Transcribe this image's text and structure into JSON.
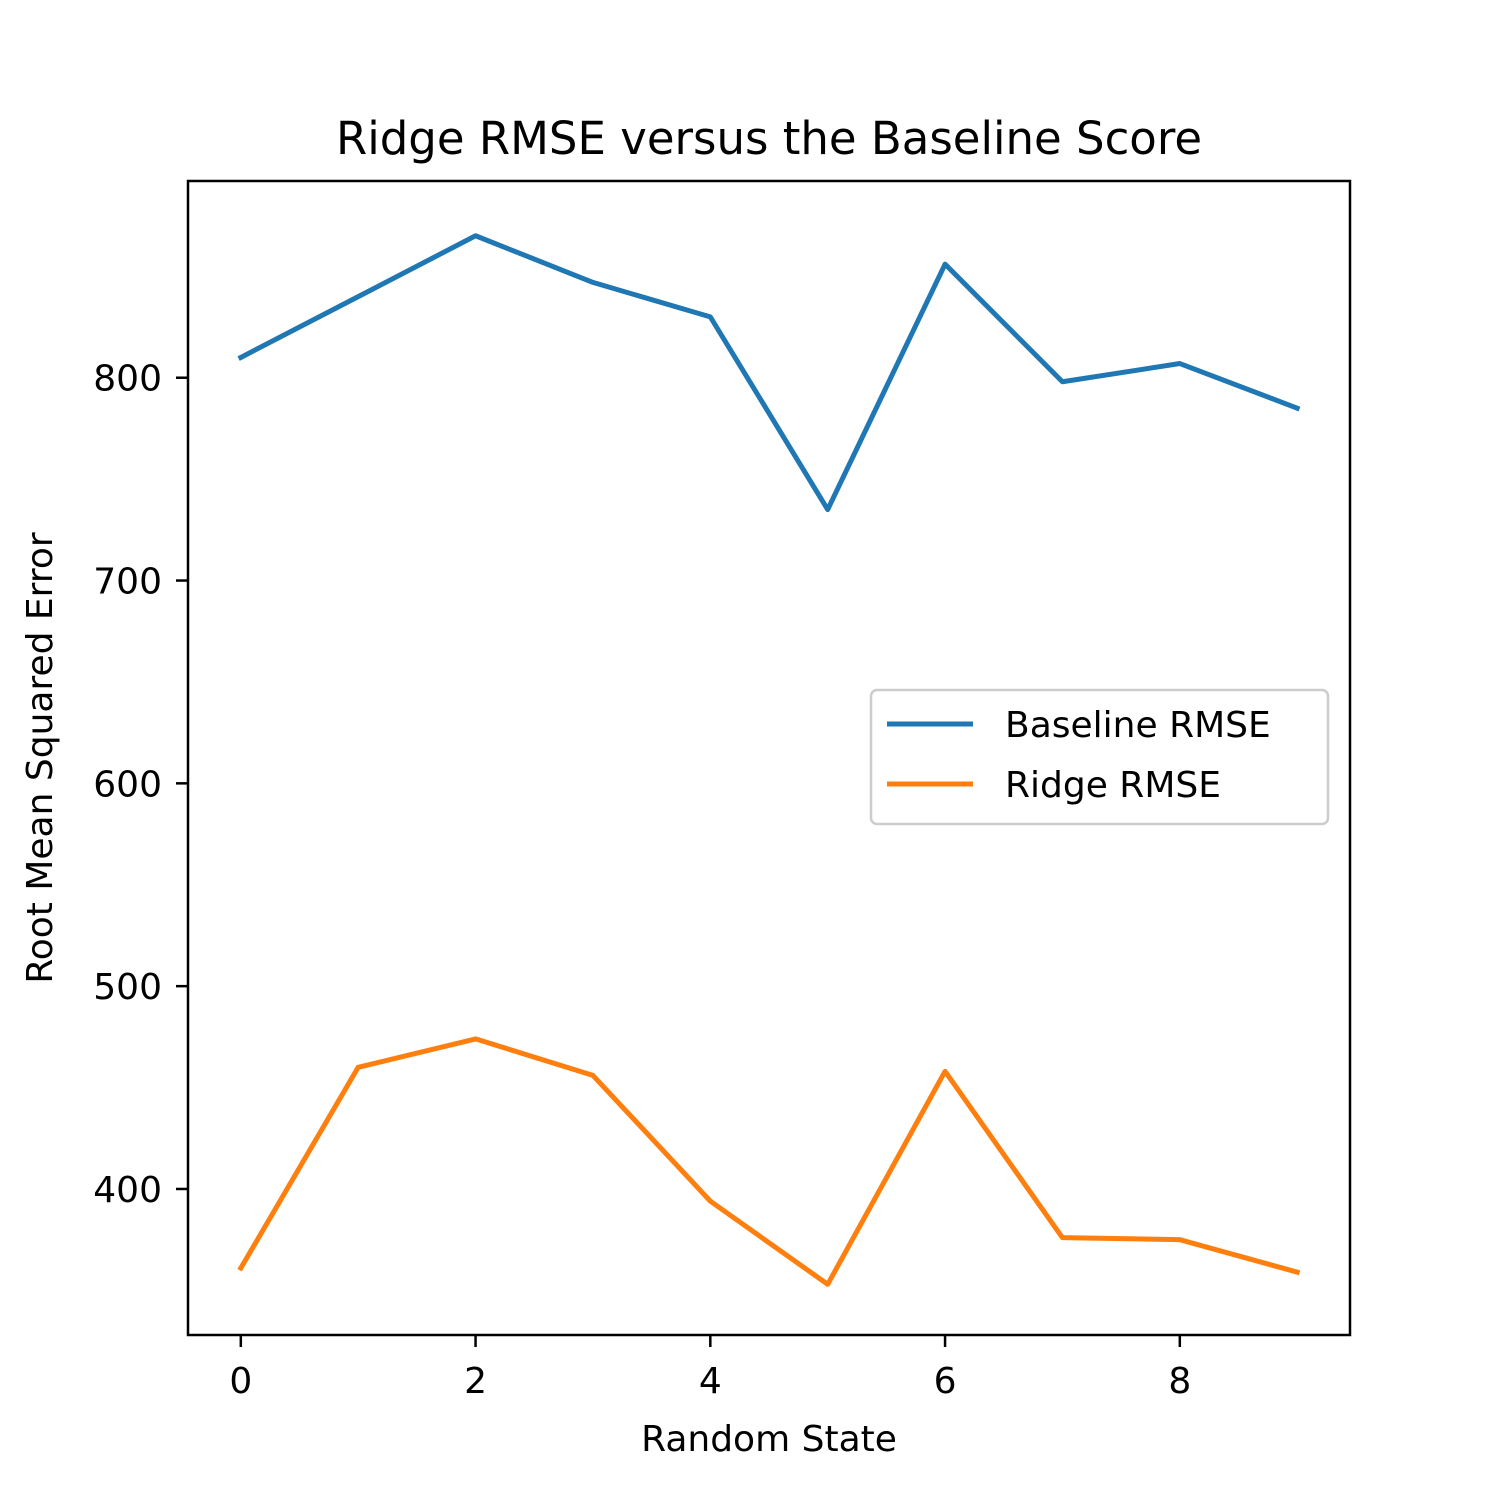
{
  "chart_data": {
    "type": "line",
    "title": "Ridge RMSE versus the Baseline Score",
    "xlabel": "Random State",
    "ylabel": "Root Mean Squared Error",
    "x": [
      0,
      1,
      2,
      3,
      4,
      5,
      6,
      7,
      8,
      9
    ],
    "xlim": [
      -0.45,
      9.45
    ],
    "ylim": [
      328,
      897
    ],
    "xticks": [
      0,
      2,
      4,
      6,
      8
    ],
    "yticks": [
      400,
      500,
      600,
      700,
      800
    ],
    "grid": false,
    "legend_position": "center-right",
    "series": [
      {
        "name": "Baseline RMSE",
        "color": "#1f77b4",
        "values": [
          810,
          840,
          870,
          847,
          830,
          735,
          856,
          798,
          807,
          785
        ]
      },
      {
        "name": "Ridge RMSE",
        "color": "#ff7f0e",
        "values": [
          361,
          460,
          474,
          456,
          394,
          353,
          458,
          376,
          375,
          359
        ]
      }
    ]
  }
}
